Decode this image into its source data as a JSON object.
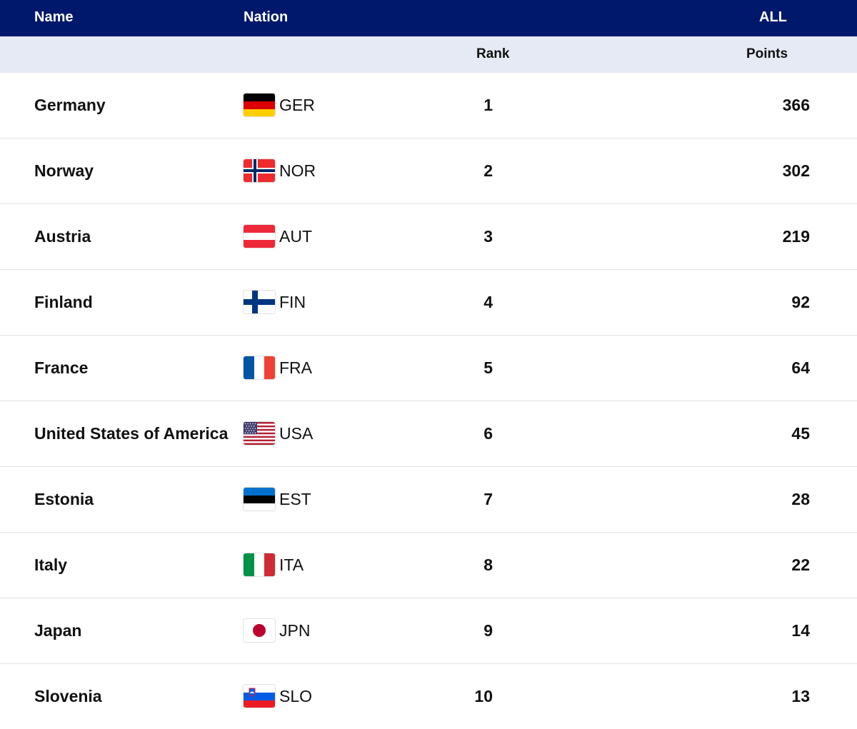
{
  "header": {
    "name_label": "Name",
    "nation_label": "Nation",
    "all_label": "ALL",
    "rank_label": "Rank",
    "points_label": "Points"
  },
  "colors": {
    "header_bg": "#00186b",
    "subheader_bg": "#e6eaf4"
  },
  "rows": [
    {
      "name": "Germany",
      "code": "GER",
      "flag": "germany-flag-icon",
      "rank": "1",
      "points": "366"
    },
    {
      "name": "Norway",
      "code": "NOR",
      "flag": "norway-flag-icon",
      "rank": "2",
      "points": "302"
    },
    {
      "name": "Austria",
      "code": "AUT",
      "flag": "austria-flag-icon",
      "rank": "3",
      "points": "219"
    },
    {
      "name": "Finland",
      "code": "FIN",
      "flag": "finland-flag-icon",
      "rank": "4",
      "points": "92"
    },
    {
      "name": "France",
      "code": "FRA",
      "flag": "france-flag-icon",
      "rank": "5",
      "points": "64"
    },
    {
      "name": "United States of America",
      "code": "USA",
      "flag": "usa-flag-icon",
      "rank": "6",
      "points": "45"
    },
    {
      "name": "Estonia",
      "code": "EST",
      "flag": "estonia-flag-icon",
      "rank": "7",
      "points": "28"
    },
    {
      "name": "Italy",
      "code": "ITA",
      "flag": "italy-flag-icon",
      "rank": "8",
      "points": "22"
    },
    {
      "name": "Japan",
      "code": "JPN",
      "flag": "japan-flag-icon",
      "rank": "9",
      "points": "14"
    },
    {
      "name": "Slovenia",
      "code": "SLO",
      "flag": "slovenia-flag-icon",
      "rank": "10",
      "points": "13"
    }
  ]
}
